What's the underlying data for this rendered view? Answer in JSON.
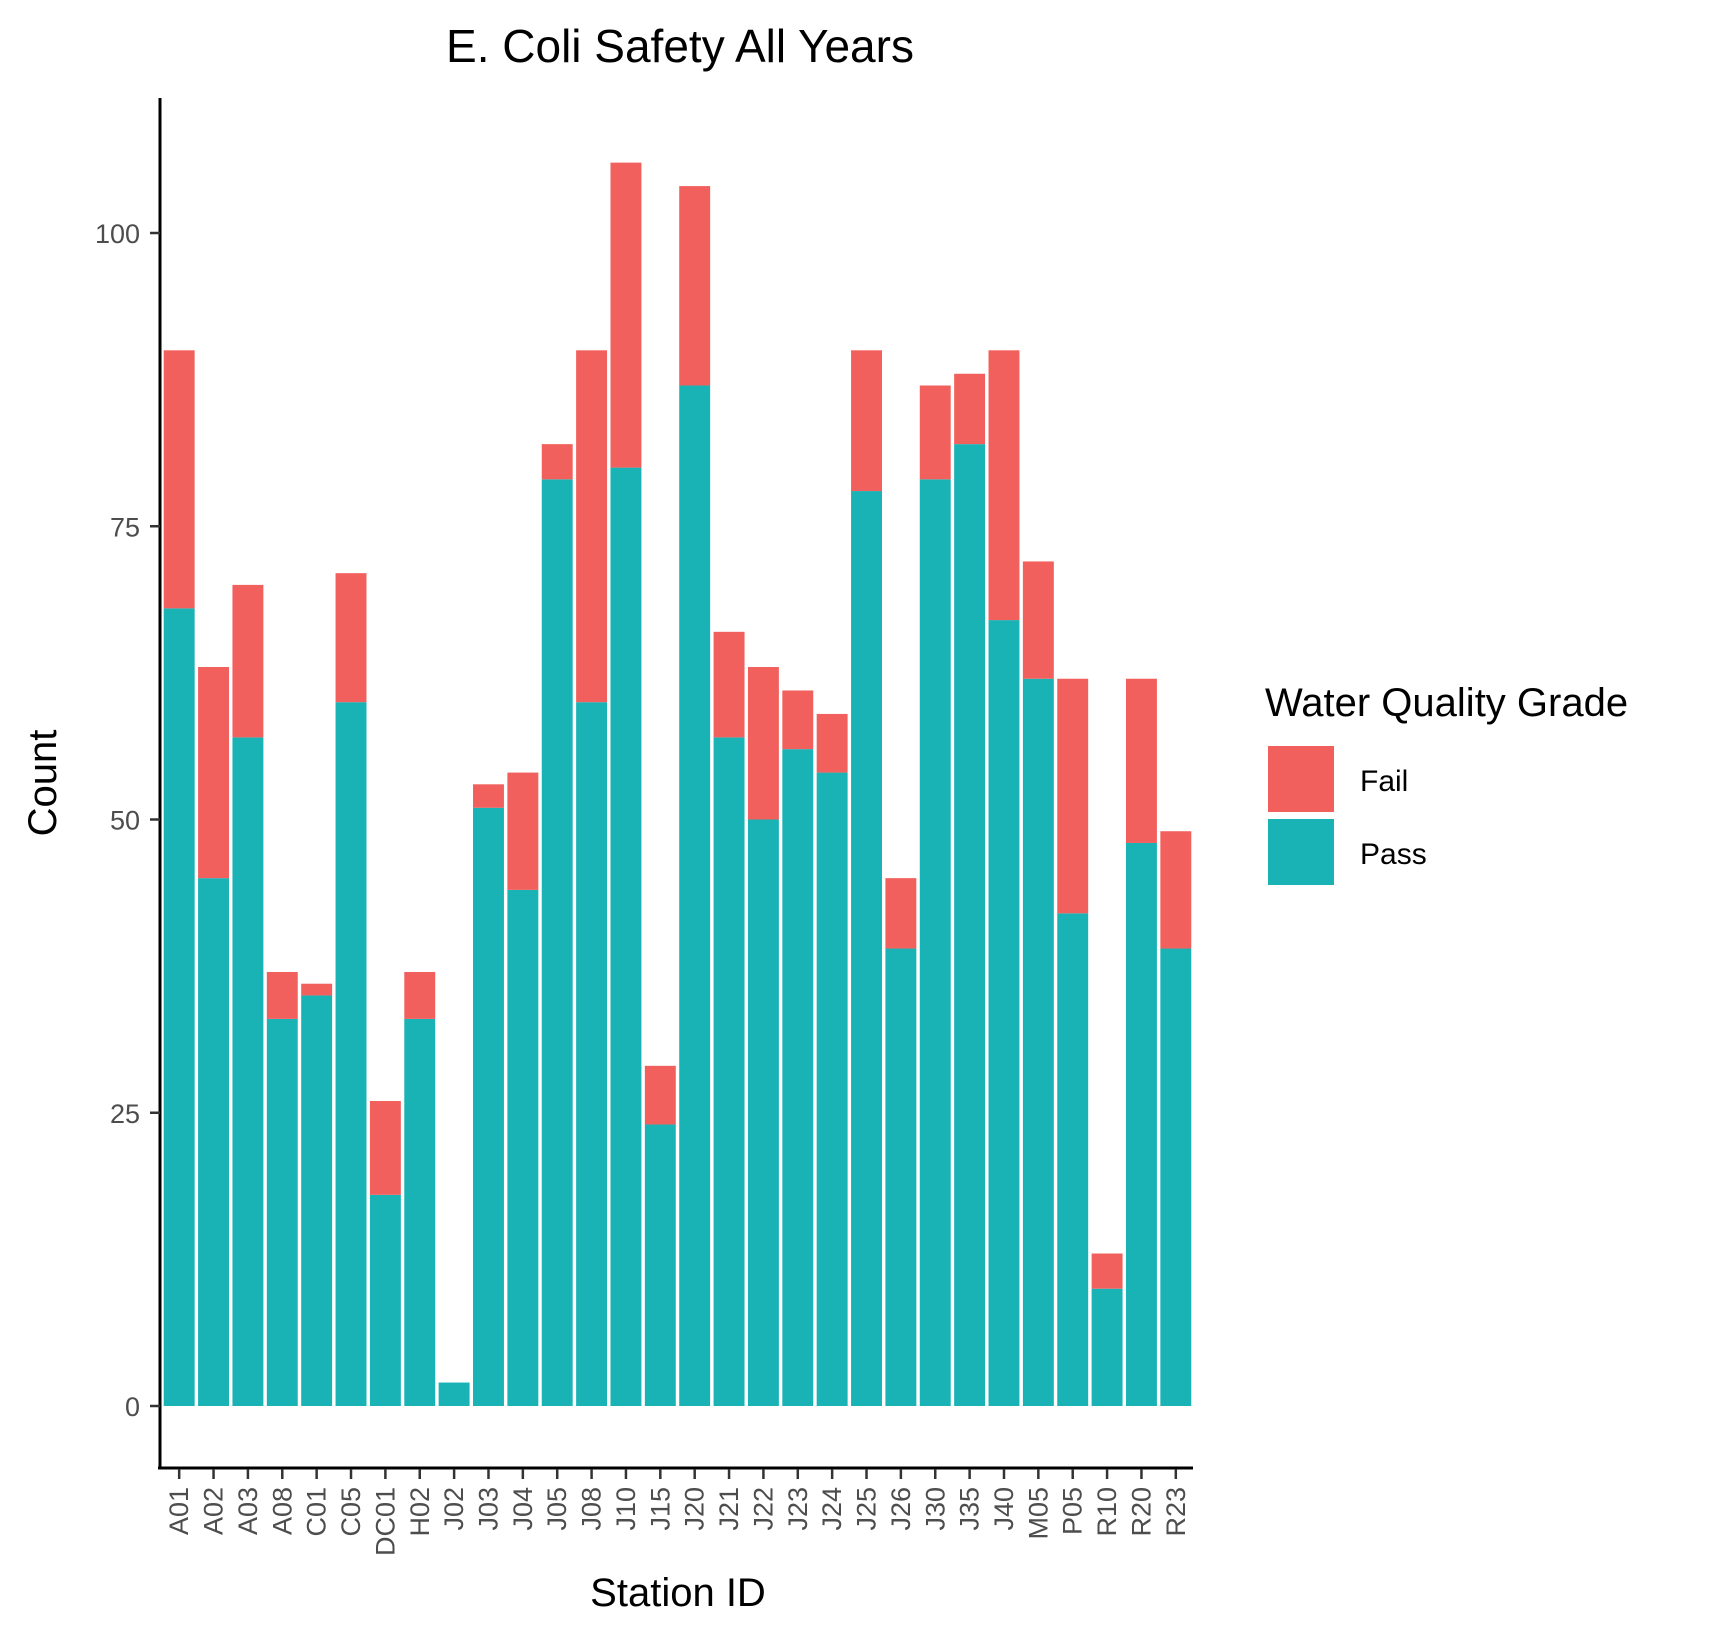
{
  "chart_data": {
    "type": "bar",
    "stacked": true,
    "title": "E. Coli Safety All Years",
    "xlabel": "Station ID",
    "ylabel": "Count",
    "ylim": [
      -5,
      111
    ],
    "yticks": [
      0,
      25,
      50,
      75,
      100
    ],
    "grid": false,
    "legend": {
      "title": "Water Quality Grade",
      "position": "right"
    },
    "categories": [
      "A01",
      "A02",
      "A03",
      "A08",
      "C01",
      "C05",
      "DC01",
      "H02",
      "J02",
      "J03",
      "J04",
      "J05",
      "J08",
      "J10",
      "J15",
      "J20",
      "J21",
      "J22",
      "J23",
      "J24",
      "J25",
      "J26",
      "J30",
      "J35",
      "J40",
      "M05",
      "P05",
      "R10",
      "R20",
      "R23"
    ],
    "series": [
      {
        "name": "Pass",
        "color": "#19b3b6",
        "values": [
          68,
          45,
          57,
          33,
          35,
          60,
          18,
          33,
          2,
          51,
          44,
          79,
          60,
          80,
          24,
          87,
          57,
          50,
          56,
          54,
          78,
          39,
          79,
          82,
          67,
          62,
          42,
          10,
          48,
          39
        ]
      },
      {
        "name": "Fail",
        "color": "#f1605c",
        "values": [
          22,
          18,
          13,
          4,
          1,
          11,
          8,
          4,
          0,
          2,
          10,
          3,
          30,
          26,
          5,
          17,
          9,
          13,
          5,
          5,
          12,
          6,
          8,
          6,
          23,
          10,
          20,
          3,
          14,
          10
        ]
      }
    ]
  }
}
